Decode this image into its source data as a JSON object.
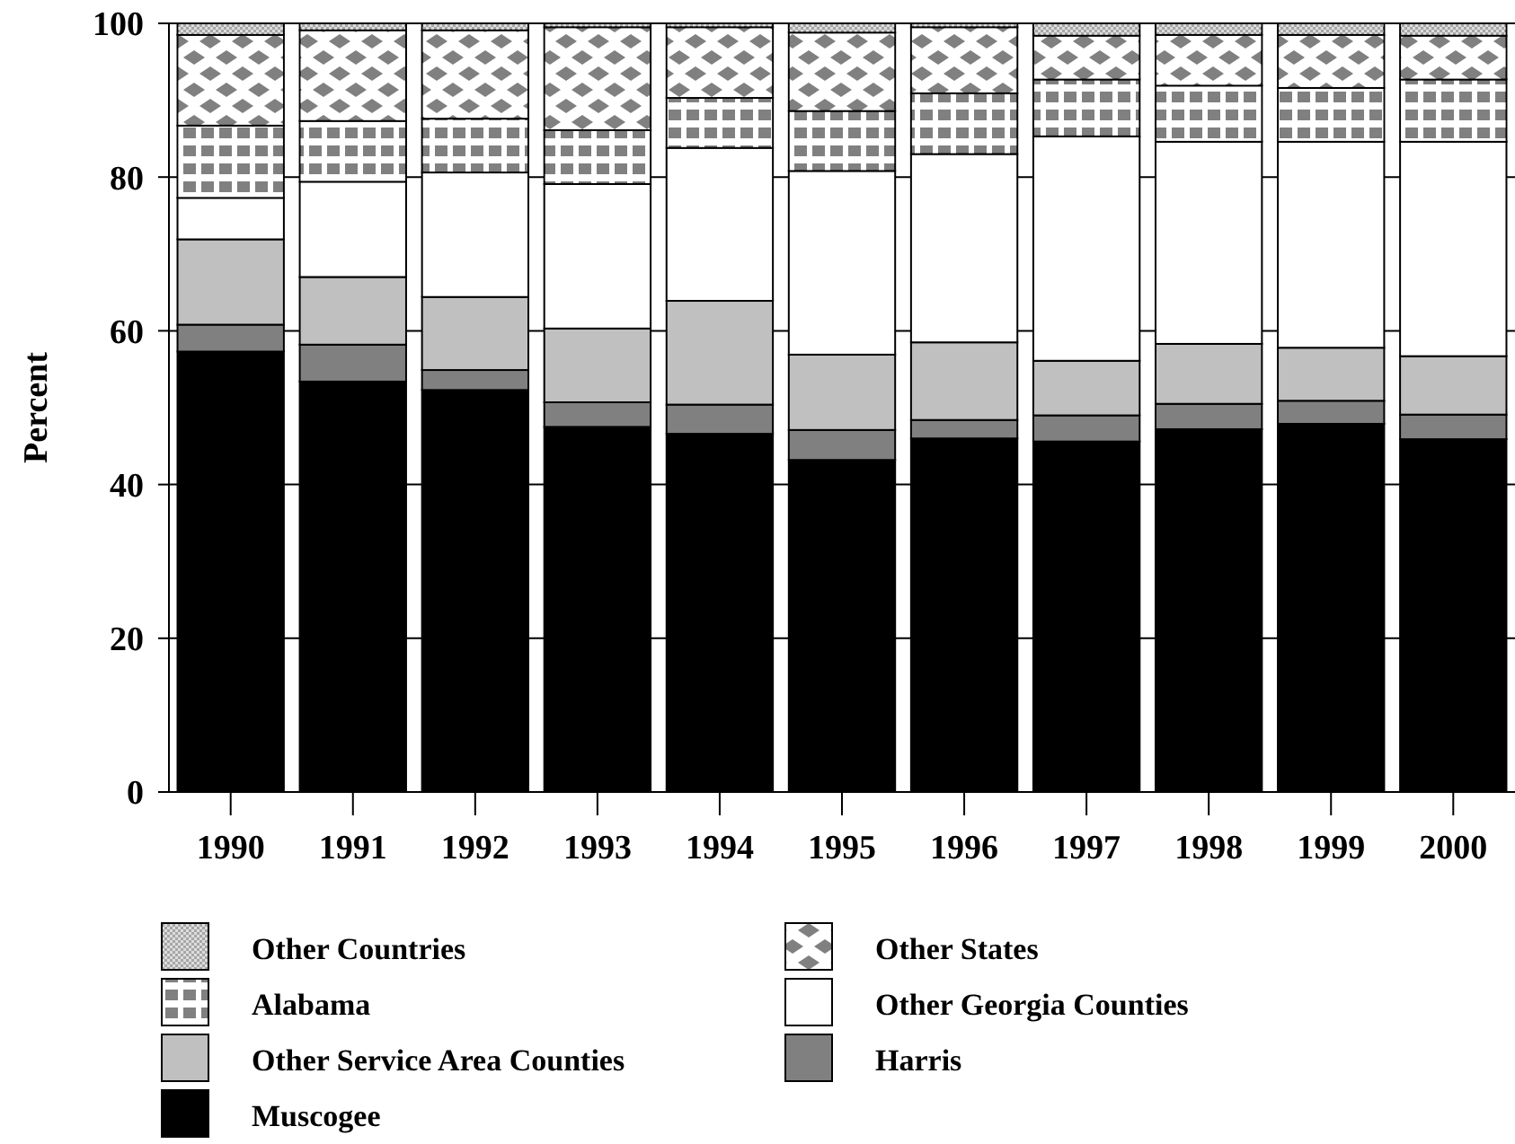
{
  "chart_data": {
    "type": "bar",
    "stacked": true,
    "ylabel": "Percent",
    "categories": [
      "1990",
      "1991",
      "1992",
      "1993",
      "1994",
      "1995",
      "1996",
      "1997",
      "1998",
      "1999",
      "2000"
    ],
    "ylim": [
      0,
      100
    ],
    "yticks": [
      0,
      20,
      40,
      60,
      80,
      100
    ],
    "grid": "y",
    "legend": "bottom",
    "series": [
      {
        "name": "Muscogee",
        "color": "#000000",
        "values": [
          57.3,
          53.4,
          52.3,
          47.5,
          46.6,
          43.2,
          46.0,
          45.6,
          47.2,
          47.9,
          45.9
        ]
      },
      {
        "name": "Harris",
        "color": "#808080",
        "values": [
          3.5,
          4.8,
          2.6,
          3.2,
          3.8,
          3.9,
          2.4,
          3.4,
          3.3,
          3.0,
          3.2
        ]
      },
      {
        "name": "Other Service Area Counties",
        "color": "#c0c0c0",
        "values": [
          11.1,
          8.8,
          9.5,
          9.6,
          13.5,
          9.8,
          10.1,
          7.1,
          7.8,
          6.9,
          7.6
        ]
      },
      {
        "name": "Other Georgia Counties",
        "color": "#ffffff",
        "values": [
          5.4,
          12.4,
          16.2,
          18.8,
          19.9,
          23.9,
          24.5,
          29.2,
          26.3,
          26.8,
          27.9
        ]
      },
      {
        "name": "Alabama",
        "color": "#808080",
        "values": [
          9.4,
          7.9,
          7.0,
          7.0,
          6.5,
          7.8,
          7.9,
          7.4,
          7.3,
          7.0,
          8.1
        ]
      },
      {
        "name": "Other States",
        "color": "#808080",
        "values": [
          11.8,
          11.8,
          11.5,
          13.4,
          9.2,
          10.2,
          8.6,
          5.7,
          6.6,
          6.9,
          5.7
        ]
      },
      {
        "name": "Other Countries",
        "color": "#a6a6a6",
        "values": [
          1.5,
          0.9,
          0.9,
          0.5,
          0.5,
          1.2,
          0.5,
          1.6,
          1.5,
          1.5,
          1.6
        ]
      }
    ]
  }
}
